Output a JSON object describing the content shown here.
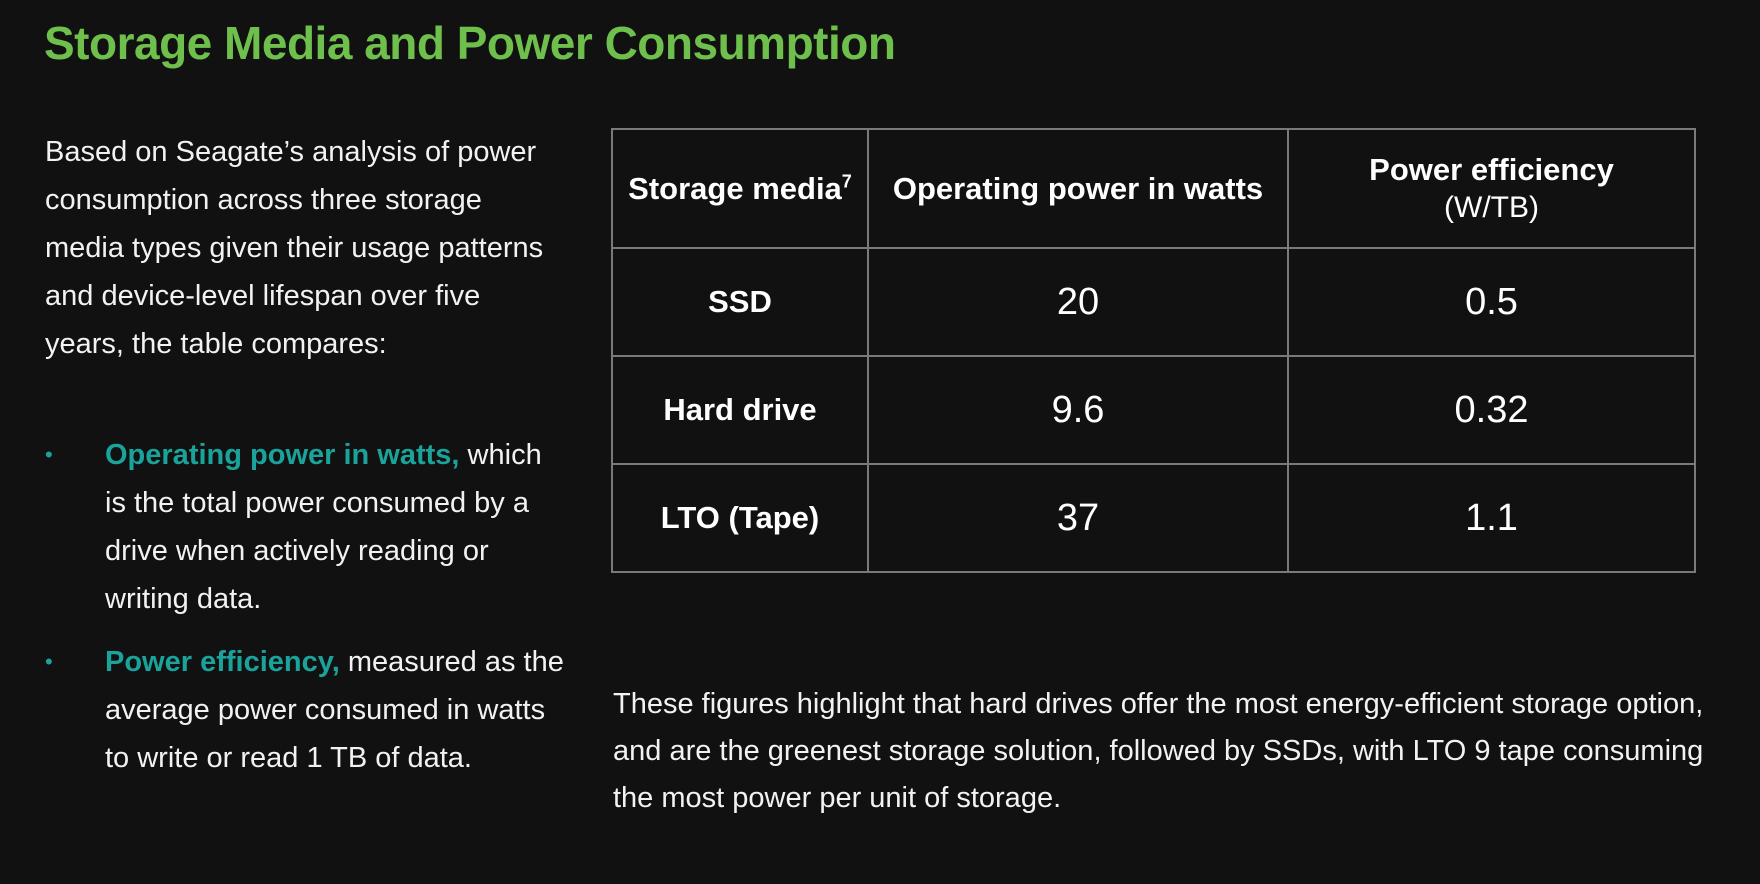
{
  "title": "Storage Media and Power Consumption",
  "intro": "Based on Seagate’s analysis of power consumption across three storage media types given their usage patterns and device-level lifespan over five years, the table compares:",
  "bullets": [
    {
      "term": "Operating power in watts,",
      "text": " which is the total power consumed by a drive when actively reading or writing data."
    },
    {
      "term": "Power efficiency,",
      "text": " measured as the average power consumed in watts to write or read 1 TB of data."
    }
  ],
  "bullet_glyph": "•",
  "table": {
    "headers": {
      "media": "Storage media",
      "media_footnote": "7",
      "power": "Operating power in watts",
      "efficiency": "Power efficiency",
      "efficiency_unit": "(W/TB)"
    },
    "rows": [
      {
        "media": "SSD",
        "power": "20",
        "efficiency": "0.5"
      },
      {
        "media": "Hard drive",
        "power": "9.6",
        "efficiency": "0.32"
      },
      {
        "media": "LTO (Tape)",
        "power": "37",
        "efficiency": "1.1"
      }
    ]
  },
  "conclusion": "These figures highlight that hard drives offer the most energy-efficient storage option, and are the greenest storage solution, followed by SSDs, with LTO 9 tape consuming the most power per unit of storage.",
  "colors": {
    "background": "#111111",
    "title": "#6ebf4b",
    "accent": "#1aa39a",
    "text": "#f2f2f2",
    "table_border": "#7a7a7a"
  }
}
